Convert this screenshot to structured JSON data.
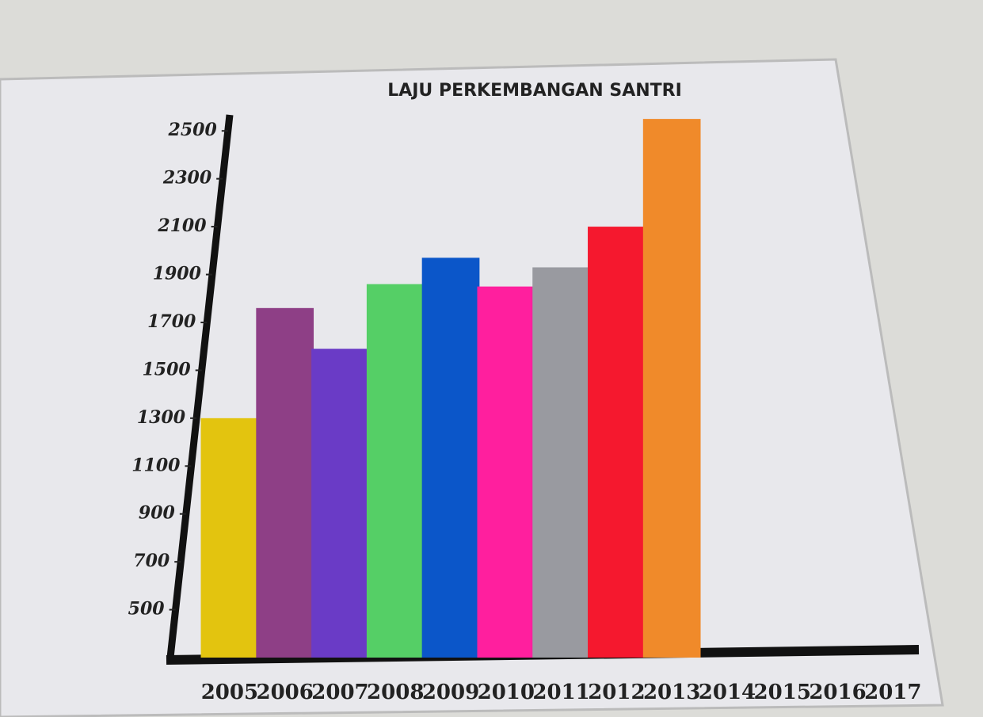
{
  "chart_data": {
    "type": "bar",
    "title": "LAJU PERKEMBANGAN SANTRI",
    "categories": [
      "2005",
      "2006",
      "2007",
      "2008",
      "2009",
      "2010",
      "2011",
      "2012",
      "2013",
      "2014",
      "2015",
      "2016",
      "2017"
    ],
    "values": [
      1300,
      1760,
      1590,
      1860,
      1970,
      1850,
      1930,
      2100,
      2550,
      null,
      null,
      null,
      null
    ],
    "colors": [
      "#e3c40f",
      "#8e3f86",
      "#6a3bc6",
      "#55cf66",
      "#0b56c9",
      "#ff1f9e",
      "#999aa0",
      "#f5182e",
      "#f08a2a",
      null,
      null,
      null,
      null
    ],
    "ylim": [
      300,
      2600
    ],
    "yticks": [
      500,
      700,
      900,
      1100,
      1300,
      1500,
      1700,
      1900,
      2100,
      2300,
      2500
    ]
  }
}
